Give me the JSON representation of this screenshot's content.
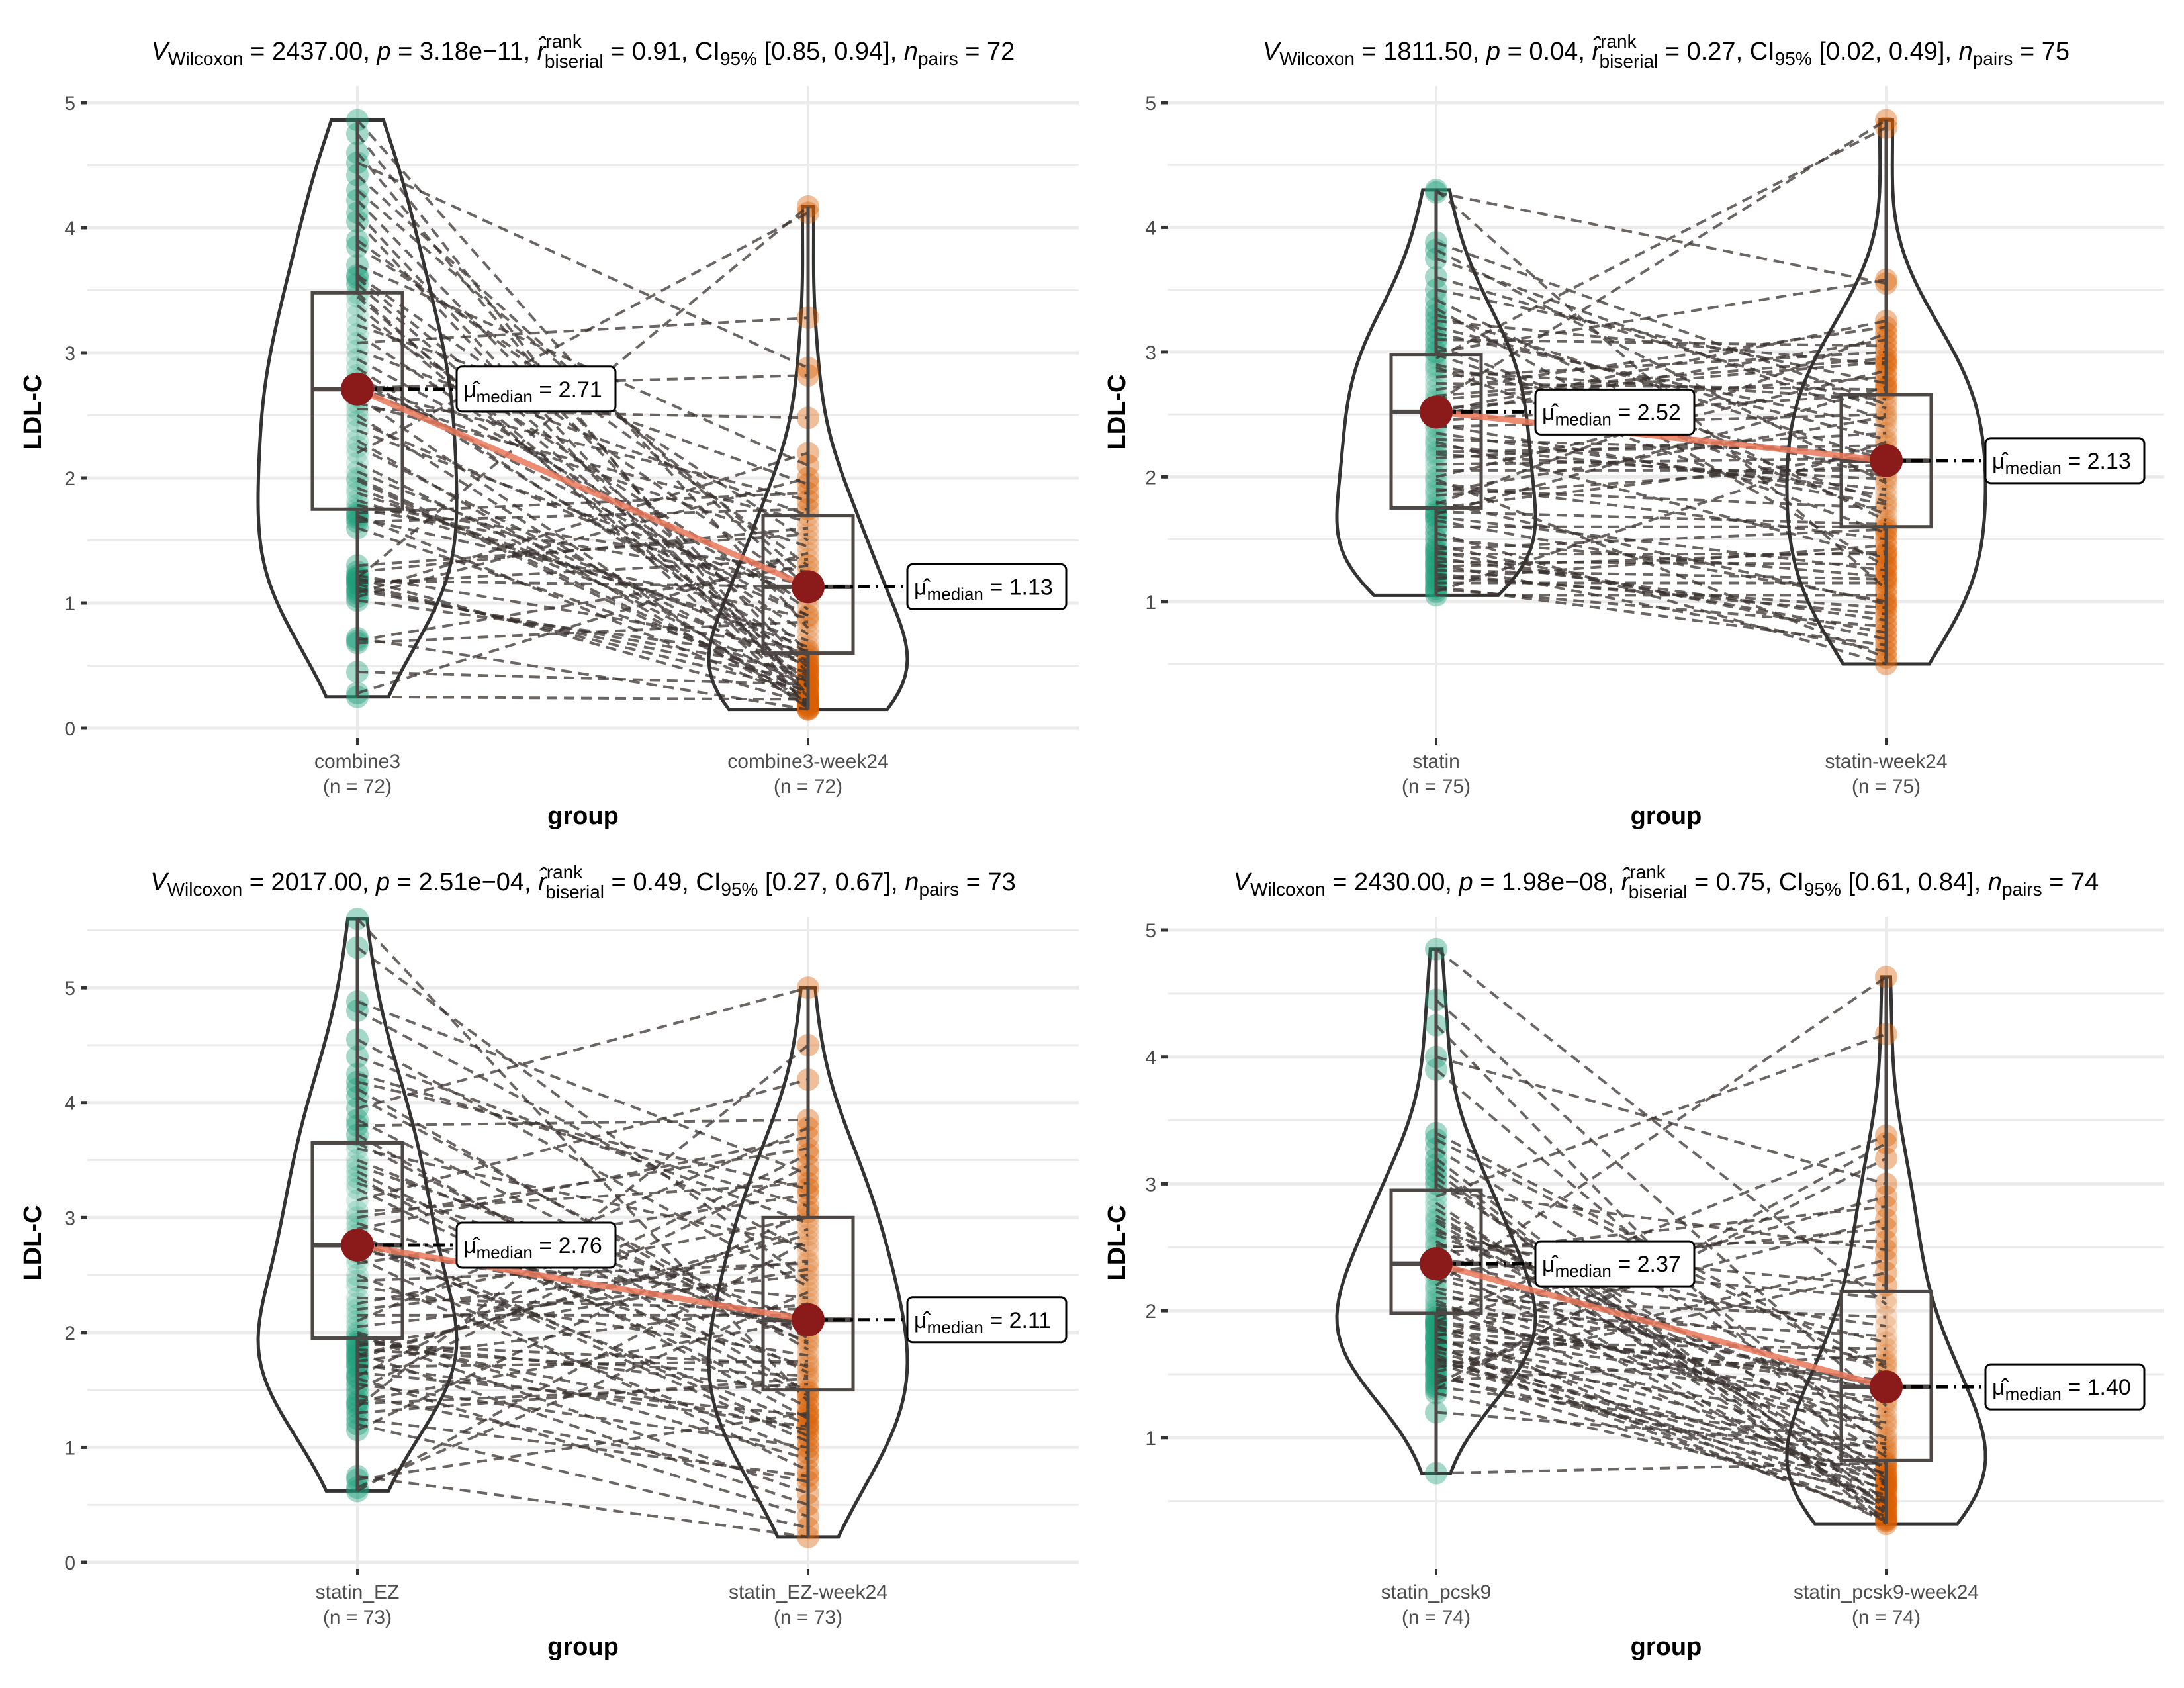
{
  "chart_data": [
    {
      "type": "violin-box-paired",
      "title": {
        "v_wilcoxon": "2437.00",
        "p": "3.18e−11",
        "r_rank_biserial": "0.91",
        "ci95": "[0.85, 0.94]",
        "n_pairs": "72"
      },
      "xlabel": "group",
      "ylabel": "LDL-C",
      "ylim": [
        0,
        5
      ],
      "yticks": [
        0,
        1,
        2,
        3,
        4,
        5
      ],
      "grid": true,
      "groups": [
        {
          "name": "combine3",
          "n_label": "(n = 72)",
          "color": "#1b9e77",
          "median": 2.71,
          "median_label": "2.71",
          "q1": 1.75,
          "q3": 3.48,
          "min": 0.25,
          "max": 4.86,
          "values": [
            4.86,
            4.75,
            4.6,
            4.52,
            4.42,
            4.22,
            4.12,
            4.05,
            3.85,
            3.7,
            3.62,
            3.55,
            3.48,
            3.45,
            3.38,
            3.3,
            3.22,
            3.15,
            3.08,
            3.02,
            2.95,
            2.88,
            2.82,
            2.78,
            2.72,
            2.71,
            2.7,
            2.65,
            2.55,
            2.45,
            2.38,
            2.3,
            2.25,
            2.2,
            2.12,
            2.05,
            1.98,
            1.92,
            1.88,
            1.82,
            1.78,
            1.75,
            1.72,
            1.7,
            1.68,
            1.65,
            1.3,
            1.25,
            1.22,
            1.2,
            1.18,
            1.16,
            1.15,
            1.12,
            1.1,
            1.08,
            1.05,
            1.02,
            0.72,
            0.68,
            0.45,
            0.28,
            0.25,
            2.6,
            2.5,
            3.6,
            3.9,
            4.3,
            2.0,
            1.6,
            1.2,
            0.7
          ]
        },
        {
          "name": "combine3-week24",
          "n_label": "(n = 72)",
          "color": "#d95f02",
          "median": 1.13,
          "median_label": "1.13",
          "q1": 0.6,
          "q3": 1.7,
          "min": 0.15,
          "max": 4.17,
          "values": [
            4.17,
            4.12,
            3.28,
            2.88,
            2.82,
            2.48,
            2.2,
            2.1,
            2.0,
            1.95,
            1.88,
            1.82,
            1.75,
            1.7,
            1.65,
            1.6,
            1.55,
            1.5,
            1.45,
            1.4,
            1.35,
            1.3,
            1.25,
            1.2,
            1.15,
            1.13,
            1.12,
            1.1,
            1.05,
            1.0,
            0.95,
            0.9,
            0.88,
            0.85,
            0.8,
            0.75,
            0.7,
            0.65,
            0.62,
            0.6,
            0.58,
            0.55,
            0.52,
            0.5,
            0.48,
            0.45,
            0.42,
            0.4,
            0.38,
            0.36,
            0.35,
            0.33,
            0.3,
            0.28,
            0.26,
            0.25,
            0.23,
            0.22,
            0.2,
            0.2,
            0.18,
            0.17,
            0.16,
            0.15,
            0.15,
            0.62,
            0.9,
            1.3,
            0.45,
            0.33,
            0.25,
            0.19
          ]
        }
      ]
    },
    {
      "type": "violin-box-paired",
      "title": {
        "v_wilcoxon": "1811.50",
        "p": "0.04",
        "r_rank_biserial": "0.27",
        "ci95": "[0.02, 0.49]",
        "n_pairs": "75"
      },
      "xlabel": "group",
      "ylabel": "LDL-C",
      "ylim": [
        0.5,
        5
      ],
      "yticks": [
        1,
        2,
        3,
        4,
        5
      ],
      "grid": true,
      "groups": [
        {
          "name": "statin",
          "n_label": "(n = 75)",
          "color": "#1b9e77",
          "median": 2.52,
          "median_label": "2.52",
          "q1": 1.75,
          "q3": 2.98,
          "min": 1.05,
          "max": 4.3,
          "values": [
            4.3,
            4.28,
            3.88,
            3.82,
            3.75,
            3.6,
            3.5,
            3.42,
            3.3,
            3.25,
            3.2,
            3.15,
            3.1,
            3.05,
            3.0,
            2.98,
            2.95,
            2.9,
            2.85,
            2.8,
            2.75,
            2.7,
            2.65,
            2.6,
            2.55,
            2.52,
            2.5,
            2.45,
            2.4,
            2.35,
            2.3,
            2.25,
            2.2,
            2.15,
            2.1,
            2.05,
            2.0,
            1.95,
            1.9,
            1.85,
            1.8,
            1.78,
            1.75,
            1.72,
            1.7,
            1.65,
            1.6,
            1.55,
            1.5,
            1.45,
            1.4,
            1.38,
            1.35,
            1.32,
            1.3,
            1.28,
            1.25,
            1.22,
            1.2,
            1.18,
            1.15,
            1.12,
            1.1,
            1.08,
            1.05,
            2.62,
            2.42,
            2.18,
            1.98,
            1.68,
            3.35,
            2.88,
            2.28,
            1.88,
            1.42
          ]
        },
        {
          "name": "statin-week24",
          "n_label": "(n = 75)",
          "color": "#d95f02",
          "median": 2.13,
          "median_label": "2.13",
          "q1": 1.6,
          "q3": 2.66,
          "min": 0.5,
          "max": 4.86,
          "values": [
            4.86,
            4.8,
            3.58,
            3.55,
            3.25,
            3.2,
            3.1,
            3.05,
            3.0,
            2.95,
            2.9,
            2.85,
            2.8,
            2.75,
            2.7,
            2.66,
            2.62,
            2.58,
            2.55,
            2.5,
            2.45,
            2.4,
            2.35,
            2.3,
            2.25,
            2.2,
            2.15,
            2.13,
            2.1,
            2.05,
            2.0,
            1.95,
            1.9,
            1.85,
            1.8,
            1.75,
            1.7,
            1.65,
            1.6,
            1.55,
            1.5,
            1.45,
            1.4,
            1.35,
            1.3,
            1.25,
            1.2,
            1.15,
            1.1,
            1.05,
            1.0,
            0.95,
            0.9,
            0.85,
            0.8,
            0.75,
            0.7,
            0.65,
            0.6,
            0.55,
            0.5,
            2.72,
            2.48,
            2.28,
            1.98,
            1.78,
            1.58,
            1.38,
            1.18,
            0.98,
            3.15,
            2.92,
            2.18,
            1.62,
            1.28
          ]
        }
      ]
    },
    {
      "type": "violin-box-paired",
      "title": {
        "v_wilcoxon": "2017.00",
        "p": "2.51e−04",
        "r_rank_biserial": "0.49",
        "ci95": "[0.27, 0.67]",
        "n_pairs": "73"
      },
      "xlabel": "group",
      "ylabel": "LDL-C",
      "ylim": [
        0,
        5.6
      ],
      "yticks": [
        0,
        1,
        2,
        3,
        4,
        5
      ],
      "grid": true,
      "groups": [
        {
          "name": "statin_EZ",
          "n_label": "(n = 73)",
          "color": "#1b9e77",
          "median": 2.76,
          "median_label": "2.76",
          "q1": 1.95,
          "q3": 3.65,
          "min": 0.62,
          "max": 5.6,
          "values": [
            5.6,
            5.35,
            4.88,
            4.8,
            4.55,
            4.4,
            4.18,
            4.12,
            4.05,
            3.85,
            3.8,
            3.72,
            3.65,
            3.6,
            3.5,
            3.45,
            3.4,
            3.3,
            3.25,
            3.15,
            3.05,
            3.0,
            2.95,
            2.9,
            2.85,
            2.8,
            2.76,
            2.75,
            2.7,
            2.6,
            2.5,
            2.45,
            2.4,
            2.3,
            2.25,
            2.2,
            2.1,
            2.05,
            2.0,
            1.98,
            1.95,
            1.92,
            1.9,
            1.88,
            1.85,
            1.82,
            1.8,
            1.78,
            1.75,
            1.72,
            1.7,
            1.65,
            1.6,
            1.55,
            1.5,
            1.45,
            1.4,
            1.35,
            1.3,
            1.25,
            1.2,
            1.15,
            0.75,
            0.72,
            0.65,
            0.62,
            3.35,
            2.65,
            2.15,
            1.62,
            1.38,
            4.25,
            3.95
          ]
        },
        {
          "name": "statin_EZ-week24",
          "n_label": "(n = 73)",
          "color": "#d95f02",
          "median": 2.11,
          "median_label": "2.11",
          "q1": 1.5,
          "q3": 3.0,
          "min": 0.22,
          "max": 5.0,
          "values": [
            5.0,
            4.5,
            4.2,
            3.85,
            3.78,
            3.7,
            3.6,
            3.55,
            3.45,
            3.3,
            3.25,
            3.2,
            3.1,
            3.05,
            3.0,
            2.95,
            2.9,
            2.8,
            2.75,
            2.7,
            2.6,
            2.5,
            2.45,
            2.4,
            2.3,
            2.25,
            2.2,
            2.15,
            2.11,
            2.1,
            2.05,
            2.0,
            1.95,
            1.9,
            1.85,
            1.8,
            1.75,
            1.7,
            1.65,
            1.6,
            1.55,
            1.5,
            1.45,
            1.4,
            1.35,
            1.3,
            1.25,
            1.2,
            1.15,
            1.1,
            1.05,
            1.0,
            0.95,
            0.9,
            0.8,
            0.75,
            0.7,
            0.6,
            0.5,
            0.4,
            0.3,
            0.22,
            2.62,
            2.35,
            1.92,
            1.72,
            1.48,
            1.18,
            3.38,
            2.85,
            2.55,
            1.62,
            1.28
          ]
        }
      ]
    },
    {
      "type": "violin-box-paired",
      "title": {
        "v_wilcoxon": "2430.00",
        "p": "1.98e−08",
        "r_rank_biserial": "0.75",
        "ci95": "[0.61, 0.84]",
        "n_pairs": "74"
      },
      "xlabel": "group",
      "ylabel": "LDL-C",
      "ylim": [
        0.3,
        5
      ],
      "yticks": [
        1,
        2,
        3,
        4,
        5
      ],
      "grid": true,
      "groups": [
        {
          "name": "statin_pcsk9",
          "n_label": "(n = 74)",
          "color": "#1b9e77",
          "median": 2.37,
          "median_label": "2.37",
          "q1": 1.98,
          "q3": 2.95,
          "min": 0.72,
          "max": 4.85,
          "values": [
            4.85,
            4.45,
            4.25,
            4.0,
            3.9,
            3.4,
            3.35,
            3.28,
            3.2,
            3.15,
            3.1,
            3.05,
            3.0,
            2.95,
            2.9,
            2.85,
            2.8,
            2.75,
            2.7,
            2.65,
            2.6,
            2.55,
            2.5,
            2.45,
            2.4,
            2.37,
            2.35,
            2.3,
            2.25,
            2.2,
            2.15,
            2.1,
            2.05,
            2.0,
            1.98,
            1.95,
            1.92,
            1.9,
            1.88,
            1.85,
            1.82,
            1.8,
            1.78,
            1.75,
            1.72,
            1.7,
            1.68,
            1.65,
            1.62,
            1.6,
            1.58,
            1.55,
            1.52,
            1.5,
            1.48,
            1.45,
            1.42,
            1.4,
            1.38,
            1.35,
            1.2,
            0.72,
            2.62,
            2.28,
            2.08,
            1.92,
            1.78,
            1.62,
            2.72,
            2.52,
            2.18,
            2.02,
            1.88,
            1.72
          ]
        },
        {
          "name": "statin_pcsk9-week24",
          "n_label": "(n = 74)",
          "color": "#d95f02",
          "median": 1.4,
          "median_label": "1.40",
          "q1": 0.82,
          "q3": 2.15,
          "min": 0.32,
          "max": 4.63,
          "values": [
            4.63,
            4.18,
            3.38,
            3.32,
            3.2,
            3.0,
            2.9,
            2.72,
            2.65,
            2.55,
            2.4,
            2.3,
            2.2,
            2.1,
            2.05,
            1.95,
            1.8,
            1.75,
            1.7,
            1.65,
            1.6,
            1.55,
            1.5,
            1.45,
            1.42,
            1.4,
            1.38,
            1.35,
            1.3,
            1.25,
            1.2,
            1.15,
            1.1,
            1.05,
            1.0,
            0.95,
            0.9,
            0.85,
            0.82,
            0.8,
            0.78,
            0.75,
            0.72,
            0.7,
            0.68,
            0.65,
            0.62,
            0.6,
            0.58,
            0.55,
            0.52,
            0.5,
            0.48,
            0.45,
            0.42,
            0.4,
            0.38,
            0.36,
            0.34,
            0.32,
            1.58,
            1.28,
            0.98,
            0.88,
            0.62,
            0.5,
            0.44,
            2.82,
            2.48,
            1.88,
            1.12,
            0.92,
            0.66,
            0.35
          ]
        }
      ]
    }
  ],
  "labels": {
    "v_sub": "Wilcoxon",
    "p_sym": "p",
    "r_sup": "rank",
    "r_sub": "biserial",
    "ci_sym": "CI",
    "ci_sub": "95%",
    "n_sym": "n",
    "n_sub": "pairs",
    "mu_sub": "median"
  },
  "colors": {
    "group1": "#1b9e77",
    "group2": "#d95f02",
    "median_point": "#8b1a1a",
    "median_line": "#e9785a",
    "grid": "#ebebeb",
    "violin": "#333333",
    "box": "#4d4845",
    "pair_line": "#3a3330"
  }
}
